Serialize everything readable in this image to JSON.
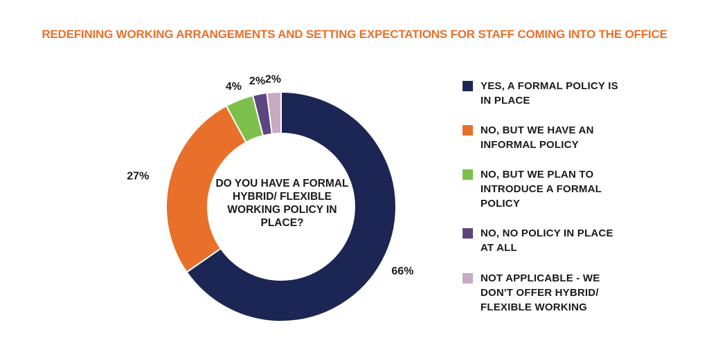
{
  "title": "REDEFINING WORKING ARRANGEMENTS AND SETTING EXPECTATIONS FOR STAFF COMING INTO THE OFFICE",
  "title_color": "#e8702a",
  "chart_data": {
    "type": "pie",
    "donut": true,
    "center_label": "DO YOU HAVE A FORMAL HYBRID/ FLEXIBLE WORKING POLICY IN PLACE?",
    "legend_position": "right",
    "slices": [
      {
        "label": "YES, A FORMAL POLICY IS IN PLACE",
        "value": 66,
        "value_label": "66%",
        "color": "#1b2654"
      },
      {
        "label": "NO, BUT WE HAVE AN INFORMAL POLICY",
        "value": 27,
        "value_label": "27%",
        "color": "#e8702a"
      },
      {
        "label": "NO, BUT WE PLAN TO INTRODUCE A FORMAL POLICY",
        "value": 4,
        "value_label": "4%",
        "color": "#7cc04b"
      },
      {
        "label": "NO, NO POLICY IN PLACE AT ALL",
        "value": 2,
        "value_label": "2%",
        "color": "#5b4680"
      },
      {
        "label": "NOT APPLICABLE - WE DON'T OFFER HYBRID/ FLEXIBLE WORKING",
        "value": 2,
        "value_label": "2%",
        "color": "#c9aac2"
      }
    ]
  }
}
